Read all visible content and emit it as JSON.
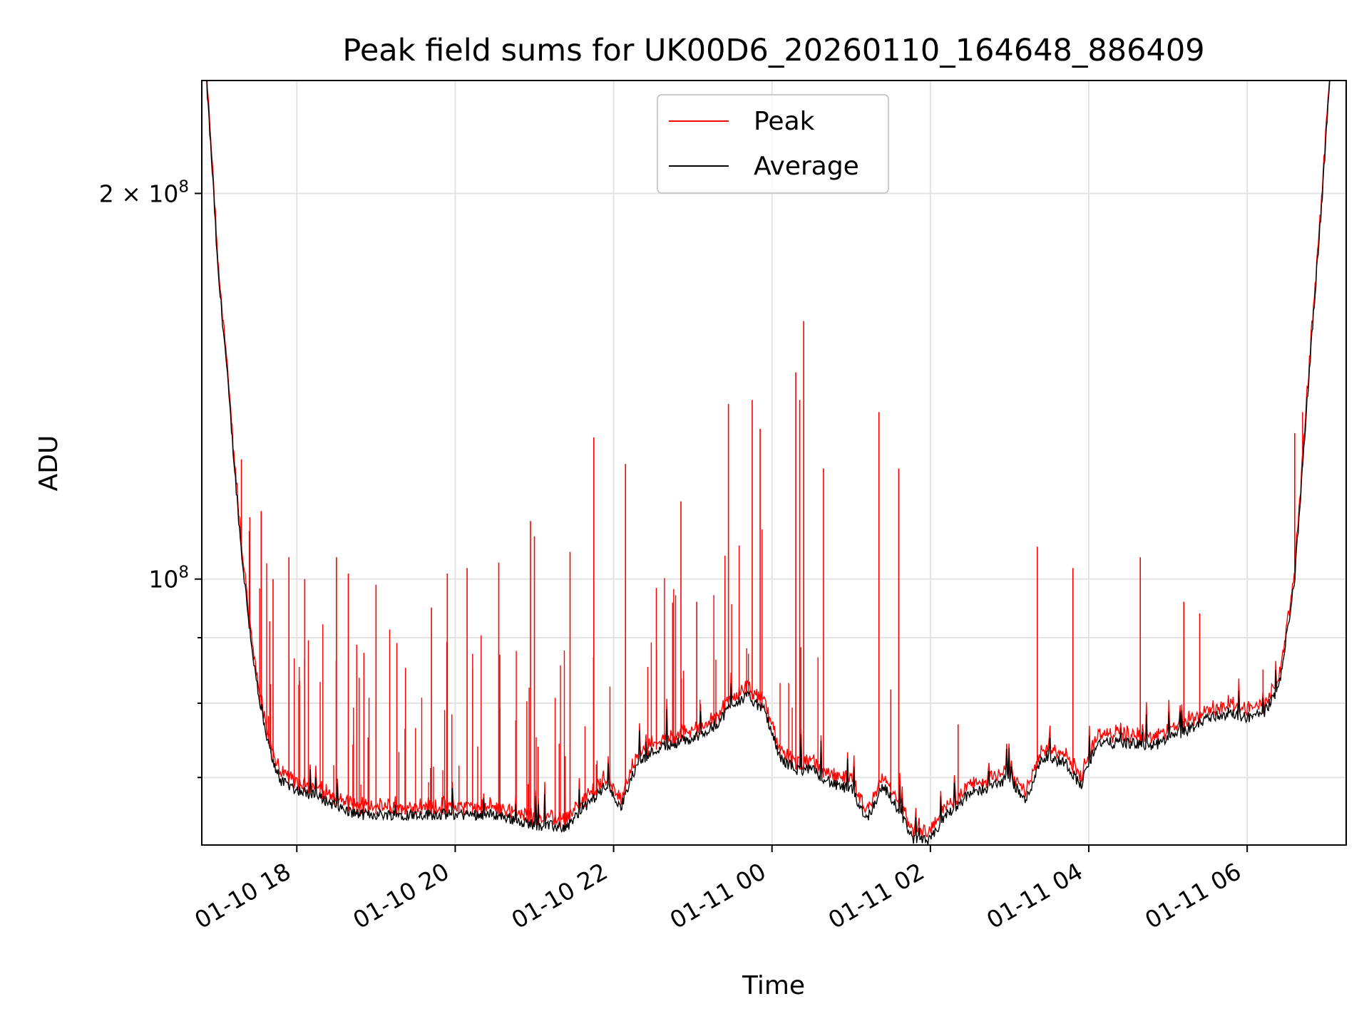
{
  "chart_data": {
    "type": "line",
    "title": "Peak field sums for UK00D6_20260110_164648_886409",
    "xlabel": "Time",
    "ylabel": "ADU",
    "yscale": "log",
    "ylim": [
      62000000,
      245000000
    ],
    "xlim_hours_from_2026_01_10_00": [
      16.8,
      31.25
    ],
    "x_ticks": [
      {
        "hour": 18,
        "label": "01-10 18"
      },
      {
        "hour": 20,
        "label": "01-10 20"
      },
      {
        "hour": 22,
        "label": "01-10 22"
      },
      {
        "hour": 24,
        "label": "01-11 00"
      },
      {
        "hour": 26,
        "label": "01-11 02"
      },
      {
        "hour": 28,
        "label": "01-11 04"
      },
      {
        "hour": 30,
        "label": "01-11 06"
      }
    ],
    "y_ticks": [
      {
        "value": 100000000,
        "label_base": "10",
        "label_exp": "8",
        "label_coef": ""
      },
      {
        "value": 200000000,
        "label_base": "10",
        "label_exp": "8",
        "label_coef": "2 × "
      }
    ],
    "y_minor_ticks": [
      70000000,
      80000000,
      90000000
    ],
    "grid": true,
    "legend": {
      "placement": "top-center",
      "entries": [
        "Peak",
        "Average"
      ]
    },
    "series": [
      {
        "name": "Peak",
        "color": "#ff0000"
      },
      {
        "name": "Average",
        "color": "#000000"
      }
    ],
    "average_trend": [
      [
        16.85,
        250000000
      ],
      [
        16.95,
        200000000
      ],
      [
        17.0,
        175000000
      ],
      [
        17.1,
        150000000
      ],
      [
        17.2,
        125000000
      ],
      [
        17.3,
        105000000
      ],
      [
        17.4,
        92000000
      ],
      [
        17.5,
        82000000
      ],
      [
        17.6,
        76000000
      ],
      [
        17.7,
        72000000
      ],
      [
        17.8,
        69500000
      ],
      [
        18.0,
        68500000
      ],
      [
        18.3,
        67500000
      ],
      [
        18.6,
        66000000
      ],
      [
        18.8,
        65500000
      ],
      [
        19.5,
        65500000
      ],
      [
        20.0,
        65500000
      ],
      [
        20.5,
        65500000
      ],
      [
        21.0,
        64300000
      ],
      [
        21.4,
        64000000
      ],
      [
        21.6,
        66000000
      ],
      [
        21.9,
        69000000
      ],
      [
        22.1,
        66500000
      ],
      [
        22.3,
        72000000
      ],
      [
        22.6,
        74000000
      ],
      [
        23.0,
        75000000
      ],
      [
        23.3,
        77000000
      ],
      [
        23.5,
        80000000
      ],
      [
        23.7,
        81000000
      ],
      [
        23.9,
        79000000
      ],
      [
        24.1,
        72500000
      ],
      [
        24.3,
        71000000
      ],
      [
        24.5,
        71000000
      ],
      [
        24.8,
        69000000
      ],
      [
        25.0,
        68500000
      ],
      [
        25.2,
        65000000
      ],
      [
        25.4,
        69000000
      ],
      [
        25.6,
        66000000
      ],
      [
        25.8,
        62500000
      ],
      [
        26.0,
        62500000
      ],
      [
        26.2,
        65500000
      ],
      [
        26.5,
        68000000
      ],
      [
        26.8,
        69000000
      ],
      [
        27.0,
        70000000
      ],
      [
        27.2,
        67000000
      ],
      [
        27.4,
        72500000
      ],
      [
        27.7,
        72000000
      ],
      [
        27.9,
        69000000
      ],
      [
        28.1,
        74500000
      ],
      [
        28.5,
        74500000
      ],
      [
        28.8,
        74000000
      ],
      [
        29.0,
        75000000
      ],
      [
        29.3,
        76500000
      ],
      [
        29.5,
        78000000
      ],
      [
        29.8,
        78500000
      ],
      [
        30.0,
        78000000
      ],
      [
        30.2,
        78500000
      ],
      [
        30.4,
        82000000
      ],
      [
        30.6,
        100000000
      ],
      [
        30.8,
        150000000
      ],
      [
        30.95,
        200000000
      ],
      [
        31.05,
        250000000
      ]
    ],
    "peak_spikes": [
      [
        17.3,
        124000000
      ],
      [
        17.4,
        109000000
      ],
      [
        17.55,
        113000000
      ],
      [
        17.7,
        100000000
      ],
      [
        17.9,
        104000000
      ],
      [
        18.1,
        100000000
      ],
      [
        18.5,
        104000000
      ],
      [
        18.65,
        101000000
      ],
      [
        19.0,
        99000000
      ],
      [
        19.7,
        95000000
      ],
      [
        19.9,
        101000000
      ],
      [
        20.15,
        102000000
      ],
      [
        20.55,
        103000000
      ],
      [
        20.95,
        111000000
      ],
      [
        21.0,
        108000000
      ],
      [
        21.45,
        105000000
      ],
      [
        21.75,
        129000000
      ],
      [
        22.15,
        123000000
      ],
      [
        22.85,
        115000000
      ],
      [
        23.05,
        96000000
      ],
      [
        23.45,
        137000000
      ],
      [
        23.75,
        138000000
      ],
      [
        23.85,
        131000000
      ],
      [
        24.3,
        145000000
      ],
      [
        24.35,
        138000000
      ],
      [
        24.4,
        159000000
      ],
      [
        24.65,
        122000000
      ],
      [
        25.35,
        135000000
      ],
      [
        25.5,
        82000000
      ],
      [
        25.6,
        122000000
      ],
      [
        26.35,
        77000000
      ],
      [
        27.35,
        106000000
      ],
      [
        27.8,
        102000000
      ],
      [
        28.65,
        104000000
      ],
      [
        29.2,
        96000000
      ],
      [
        29.4,
        94000000
      ],
      [
        30.2,
        85000000
      ],
      [
        30.6,
        130000000
      ],
      [
        30.7,
        135000000
      ]
    ]
  }
}
